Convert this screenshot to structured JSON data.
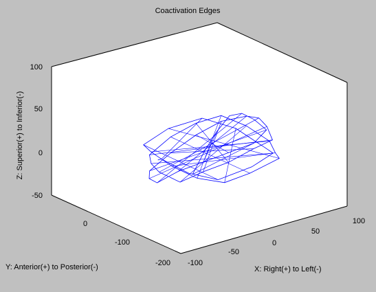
{
  "chart_data": {
    "type": "3d-line",
    "title": "Coactivation Edges",
    "xlabel": "X: Right(+) to Left(-)",
    "ylabel": "Y: Anterior(+) to Posterior(-)",
    "zlabel": "Z: Superior(+) to Inferior(-)",
    "xlim": [
      -100,
      100
    ],
    "ylim": [
      -200,
      100
    ],
    "zlim": [
      -50,
      100
    ],
    "x_ticks": [
      "-100",
      "-50",
      "0",
      "50",
      "100"
    ],
    "y_ticks": [
      "-200",
      "-100",
      "0"
    ],
    "z_ticks": [
      "-50",
      "0",
      "50",
      "100"
    ],
    "series": [
      {
        "color": "#0000ff",
        "description_of_shape": "dense tangle of edges forming a brain-shaped cloud",
        "x": [
          -60,
          -40,
          -20,
          0,
          20,
          40,
          60,
          50,
          30,
          10,
          -10,
          -30,
          -50,
          -65,
          -55,
          -35,
          -15,
          5,
          25,
          45,
          62,
          55,
          35,
          15,
          -5,
          -25,
          -45,
          -60,
          -50,
          -30,
          -10,
          10,
          30,
          50,
          65,
          40,
          20,
          0,
          -20,
          -40,
          -62,
          -45,
          -20,
          5,
          30,
          55,
          45,
          20,
          -5,
          -30,
          -55
        ],
        "y": [
          -150,
          -140,
          -130,
          -120,
          -110,
          -100,
          -90,
          -80,
          -60,
          -40,
          -20,
          -10,
          -30,
          -60,
          -90,
          -110,
          -130,
          -150,
          -140,
          -120,
          -100,
          -70,
          -50,
          -30,
          -15,
          -5,
          -25,
          -50,
          -80,
          -100,
          -120,
          -140,
          -155,
          -130,
          -110,
          -90,
          -70,
          -45,
          -25,
          -15,
          -40,
          -65,
          -95,
          -125,
          -145,
          -115,
          -85,
          -55,
          -35,
          -20,
          -60
        ],
        "z": [
          20,
          40,
          55,
          65,
          60,
          45,
          25,
          10,
          0,
          -10,
          -20,
          -30,
          -15,
          5,
          30,
          50,
          65,
          70,
          60,
          40,
          15,
          0,
          -15,
          -25,
          -35,
          -20,
          0,
          20,
          45,
          60,
          68,
          55,
          35,
          10,
          -5,
          -20,
          -30,
          -25,
          -10,
          10,
          30,
          50,
          62,
          50,
          25,
          5,
          -15,
          -30,
          -20,
          0,
          15
        ]
      }
    ]
  }
}
